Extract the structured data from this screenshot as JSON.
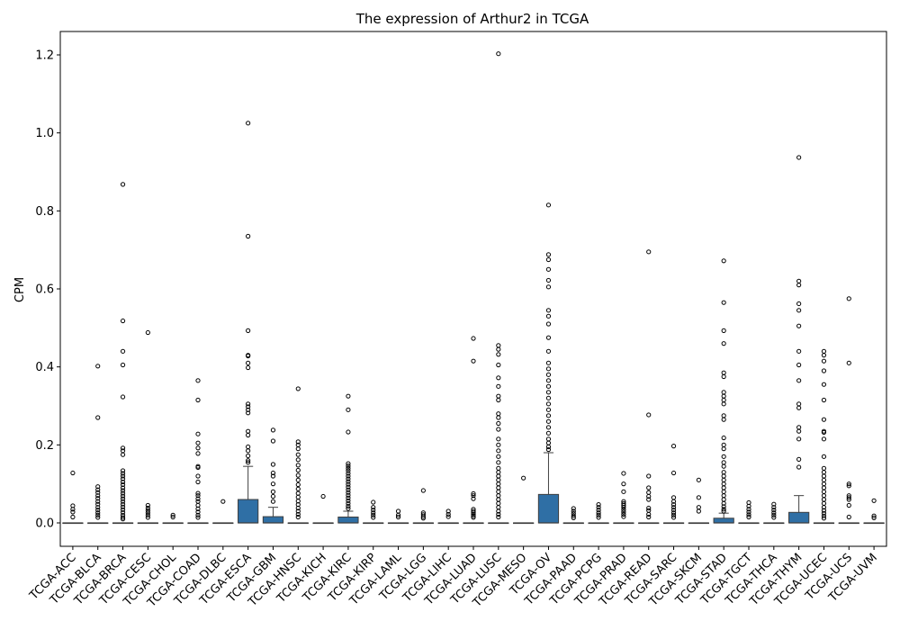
{
  "chart_data": {
    "type": "box",
    "title": "The expression of Arthur2 in TCGA",
    "xlabel": "",
    "ylabel": "CPM",
    "ylim": [
      -0.06,
      1.26
    ],
    "yticks": [
      0.0,
      0.2,
      0.4,
      0.6,
      0.8,
      1.0,
      1.2
    ],
    "ytick_labels": [
      "0.0",
      "0.2",
      "0.4",
      "0.6",
      "0.8",
      "1.0",
      "1.2"
    ],
    "grid": false,
    "legend": "none",
    "box_color": "#2f6fa5",
    "categories": [
      "TCGA-ACC",
      "TCGA-BLCA",
      "TCGA-BRCA",
      "TCGA-CESC",
      "TCGA-CHOL",
      "TCGA-COAD",
      "TCGA-DLBC",
      "TCGA-ESCA",
      "TCGA-GBM",
      "TCGA-HNSC",
      "TCGA-KICH",
      "TCGA-KIRC",
      "TCGA-KIRP",
      "TCGA-LAML",
      "TCGA-LGG",
      "TCGA-LIHC",
      "TCGA-LUAD",
      "TCGA-LUSC",
      "TCGA-MESO",
      "TCGA-OV",
      "TCGA-PAAD",
      "TCGA-PCPG",
      "TCGA-PRAD",
      "TCGA-READ",
      "TCGA-SARC",
      "TCGA-SKCM",
      "TCGA-STAD",
      "TCGA-TGCT",
      "TCGA-THCA",
      "TCGA-THYM",
      "TCGA-UCEC",
      "TCGA-UCS",
      "TCGA-UVM"
    ],
    "boxes": [
      {
        "q1": 0,
        "median": 0,
        "q3": 0,
        "whisker_low": 0,
        "whisker_high": 0,
        "outliers": [
          0.128,
          0.044,
          0.035,
          0.028,
          0.015
        ]
      },
      {
        "q1": 0,
        "median": 0,
        "q3": 0,
        "whisker_low": 0,
        "whisker_high": 0,
        "outliers": [
          0.402,
          0.27,
          0.093,
          0.085,
          0.078,
          0.07,
          0.063,
          0.055,
          0.048,
          0.04,
          0.033,
          0.026,
          0.02,
          0.014
        ]
      },
      {
        "q1": 0,
        "median": 0,
        "q3": 0,
        "whisker_low": 0,
        "whisker_high": 0,
        "outliers": [
          0.868,
          0.518,
          0.44,
          0.405,
          0.323,
          0.192,
          0.185,
          0.175,
          0.134,
          0.127,
          0.12,
          0.113,
          0.105,
          0.098,
          0.09,
          0.083,
          0.076,
          0.069,
          0.062,
          0.055,
          0.048,
          0.041,
          0.034,
          0.027,
          0.02,
          0.014,
          0.01
        ]
      },
      {
        "q1": 0,
        "median": 0,
        "q3": 0,
        "whisker_low": 0,
        "whisker_high": 0,
        "outliers": [
          0.488,
          0.045,
          0.038,
          0.032,
          0.026,
          0.02,
          0.014
        ]
      },
      {
        "q1": 0,
        "median": 0,
        "q3": 0,
        "whisker_low": 0,
        "whisker_high": 0,
        "outliers": [
          0.02,
          0.015
        ]
      },
      {
        "q1": 0,
        "median": 0,
        "q3": 0,
        "whisker_low": 0,
        "whisker_high": 0,
        "outliers": [
          0.365,
          0.315,
          0.228,
          0.205,
          0.192,
          0.178,
          0.145,
          0.142,
          0.12,
          0.105,
          0.076,
          0.07,
          0.062,
          0.055,
          0.045,
          0.036,
          0.028,
          0.02,
          0.014
        ]
      },
      {
        "q1": 0,
        "median": 0,
        "q3": 0,
        "whisker_low": 0,
        "whisker_high": 0,
        "outliers": [
          0.055
        ]
      },
      {
        "q1": 0,
        "median": 0,
        "q3": 0.06,
        "whisker_low": 0,
        "whisker_high": 0.145,
        "outliers": [
          1.025,
          0.735,
          0.493,
          0.43,
          0.428,
          0.41,
          0.398,
          0.305,
          0.298,
          0.29,
          0.282,
          0.235,
          0.225,
          0.195,
          0.185,
          0.172,
          0.16,
          0.155
        ]
      },
      {
        "q1": 0,
        "median": 0,
        "q3": 0.016,
        "whisker_low": 0,
        "whisker_high": 0.04,
        "outliers": [
          0.238,
          0.21,
          0.15,
          0.128,
          0.12,
          0.1,
          0.08,
          0.068,
          0.055
        ]
      },
      {
        "q1": 0,
        "median": 0,
        "q3": 0,
        "whisker_low": 0,
        "whisker_high": 0,
        "outliers": [
          0.344,
          0.208,
          0.2,
          0.19,
          0.175,
          0.162,
          0.148,
          0.135,
          0.122,
          0.11,
          0.098,
          0.087,
          0.076,
          0.066,
          0.056,
          0.047,
          0.038,
          0.03,
          0.022,
          0.015
        ]
      },
      {
        "q1": 0,
        "median": 0,
        "q3": 0,
        "whisker_low": 0,
        "whisker_high": 0,
        "outliers": [
          0.068
        ]
      },
      {
        "q1": 0,
        "median": 0,
        "q3": 0.015,
        "whisker_low": 0,
        "whisker_high": 0.03,
        "outliers": [
          0.325,
          0.29,
          0.233,
          0.152,
          0.146,
          0.14,
          0.134,
          0.127,
          0.12,
          0.113,
          0.106,
          0.099,
          0.092,
          0.085,
          0.078,
          0.071,
          0.064,
          0.057,
          0.05,
          0.043,
          0.037
        ]
      },
      {
        "q1": 0,
        "median": 0,
        "q3": 0,
        "whisker_low": 0,
        "whisker_high": 0,
        "outliers": [
          0.053,
          0.04,
          0.033,
          0.026,
          0.02,
          0.014
        ]
      },
      {
        "q1": 0,
        "median": 0,
        "q3": 0,
        "whisker_low": 0,
        "whisker_high": 0,
        "outliers": [
          0.03,
          0.02,
          0.015
        ]
      },
      {
        "q1": 0,
        "median": 0,
        "q3": 0,
        "whisker_low": 0,
        "whisker_high": 0,
        "outliers": [
          0.083,
          0.026,
          0.021,
          0.016,
          0.012
        ]
      },
      {
        "q1": 0,
        "median": 0,
        "q3": 0,
        "whisker_low": 0,
        "whisker_high": 0,
        "outliers": [
          0.03,
          0.022,
          0.016
        ]
      },
      {
        "q1": 0,
        "median": 0,
        "q3": 0,
        "whisker_low": 0,
        "whisker_high": 0,
        "outliers": [
          0.473,
          0.415,
          0.075,
          0.07,
          0.062,
          0.035,
          0.03,
          0.026,
          0.022,
          0.018,
          0.014
        ]
      },
      {
        "q1": 0,
        "median": 0,
        "q3": 0,
        "whisker_low": 0,
        "whisker_high": 0,
        "outliers": [
          1.203,
          0.455,
          0.445,
          0.432,
          0.405,
          0.372,
          0.35,
          0.325,
          0.315,
          0.28,
          0.27,
          0.255,
          0.24,
          0.215,
          0.2,
          0.185,
          0.17,
          0.155,
          0.14,
          0.13,
          0.12,
          0.11,
          0.1,
          0.09,
          0.08,
          0.07,
          0.06,
          0.05,
          0.04,
          0.03,
          0.022,
          0.015
        ]
      },
      {
        "q1": 0,
        "median": 0,
        "q3": 0,
        "whisker_low": 0,
        "whisker_high": 0,
        "outliers": [
          0.115
        ]
      },
      {
        "q1": 0,
        "median": 0,
        "q3": 0.073,
        "whisker_low": 0,
        "whisker_high": 0.18,
        "outliers": [
          0.815,
          0.688,
          0.675,
          0.65,
          0.622,
          0.605,
          0.545,
          0.53,
          0.51,
          0.475,
          0.44,
          0.41,
          0.395,
          0.38,
          0.365,
          0.35,
          0.335,
          0.32,
          0.305,
          0.29,
          0.275,
          0.26,
          0.245,
          0.23,
          0.215,
          0.205,
          0.195,
          0.188
        ]
      },
      {
        "q1": 0,
        "median": 0,
        "q3": 0,
        "whisker_low": 0,
        "whisker_high": 0,
        "outliers": [
          0.037,
          0.03,
          0.024,
          0.018,
          0.013
        ]
      },
      {
        "q1": 0,
        "median": 0,
        "q3": 0,
        "whisker_low": 0,
        "whisker_high": 0,
        "outliers": [
          0.047,
          0.04,
          0.033,
          0.026,
          0.02,
          0.014
        ]
      },
      {
        "q1": 0,
        "median": 0,
        "q3": 0,
        "whisker_low": 0,
        "whisker_high": 0,
        "outliers": [
          0.127,
          0.1,
          0.08,
          0.055,
          0.05,
          0.045,
          0.04,
          0.034,
          0.028,
          0.022,
          0.016
        ]
      },
      {
        "q1": 0,
        "median": 0,
        "q3": 0,
        "whisker_low": 0,
        "whisker_high": 0,
        "outliers": [
          0.695,
          0.277,
          0.12,
          0.09,
          0.078,
          0.068,
          0.06,
          0.038,
          0.032,
          0.022,
          0.015
        ]
      },
      {
        "q1": 0,
        "median": 0,
        "q3": 0,
        "whisker_low": 0,
        "whisker_high": 0,
        "outliers": [
          0.197,
          0.128,
          0.065,
          0.055,
          0.047,
          0.04,
          0.033,
          0.026,
          0.02,
          0.014
        ]
      },
      {
        "q1": 0,
        "median": 0,
        "q3": 0,
        "whisker_low": 0,
        "whisker_high": 0,
        "outliers": [
          0.11,
          0.065,
          0.04,
          0.03
        ]
      },
      {
        "q1": 0,
        "median": 0,
        "q3": 0.012,
        "whisker_low": 0,
        "whisker_high": 0.025,
        "outliers": [
          0.672,
          0.565,
          0.493,
          0.46,
          0.385,
          0.375,
          0.335,
          0.325,
          0.315,
          0.305,
          0.275,
          0.265,
          0.218,
          0.2,
          0.19,
          0.17,
          0.155,
          0.145,
          0.13,
          0.12,
          0.11,
          0.1,
          0.09,
          0.08,
          0.07,
          0.06,
          0.05,
          0.042,
          0.035,
          0.03
        ]
      },
      {
        "q1": 0,
        "median": 0,
        "q3": 0,
        "whisker_low": 0,
        "whisker_high": 0,
        "outliers": [
          0.052,
          0.043,
          0.035,
          0.028,
          0.021,
          0.015
        ]
      },
      {
        "q1": 0,
        "median": 0,
        "q3": 0,
        "whisker_low": 0,
        "whisker_high": 0,
        "outliers": [
          0.048,
          0.04,
          0.033,
          0.026,
          0.02,
          0.014
        ]
      },
      {
        "q1": 0,
        "median": 0,
        "q3": 0.027,
        "whisker_low": 0,
        "whisker_high": 0.07,
        "outliers": [
          0.937,
          0.62,
          0.61,
          0.562,
          0.545,
          0.505,
          0.44,
          0.405,
          0.365,
          0.305,
          0.295,
          0.245,
          0.235,
          0.215,
          0.163,
          0.143
        ]
      },
      {
        "q1": 0,
        "median": 0,
        "q3": 0,
        "whisker_low": 0,
        "whisker_high": 0,
        "outliers": [
          0.44,
          0.43,
          0.415,
          0.39,
          0.355,
          0.315,
          0.265,
          0.235,
          0.232,
          0.215,
          0.17,
          0.14,
          0.13,
          0.12,
          0.11,
          0.1,
          0.09,
          0.08,
          0.07,
          0.06,
          0.05,
          0.04,
          0.032,
          0.025,
          0.018,
          0.012
        ]
      },
      {
        "q1": 0,
        "median": 0,
        "q3": 0,
        "whisker_low": 0,
        "whisker_high": 0,
        "outliers": [
          0.575,
          0.41,
          0.1,
          0.095,
          0.07,
          0.065,
          0.06,
          0.045,
          0.015
        ]
      },
      {
        "q1": 0,
        "median": 0,
        "q3": 0,
        "whisker_low": 0,
        "whisker_high": 0,
        "outliers": [
          0.057,
          0.018,
          0.013
        ]
      }
    ]
  }
}
